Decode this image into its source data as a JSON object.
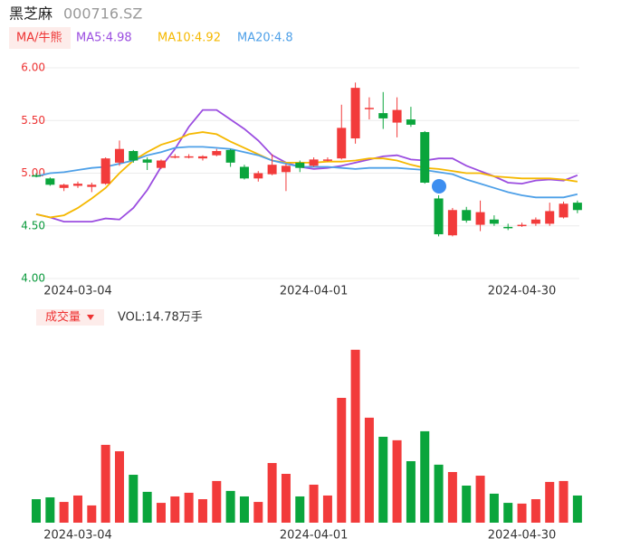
{
  "chart_data": [
    {
      "type": "candlestick",
      "title": "黑芝麻",
      "subtitle": "000716.SZ",
      "legend_title": "MA/牛熊",
      "categories": [
        null,
        null,
        null,
        "2024-03-04",
        null,
        null,
        null,
        null,
        null,
        null,
        null,
        null,
        null,
        null,
        null,
        null,
        null,
        null,
        null,
        null,
        "2024-04-01",
        null,
        null,
        null,
        null,
        null,
        null,
        null,
        null,
        null,
        null,
        null,
        null,
        null,
        null,
        "2024-04-30",
        null,
        null,
        null,
        null
      ],
      "open": [
        4.98,
        4.95,
        4.86,
        4.88,
        4.87,
        4.9,
        5.1,
        5.21,
        5.13,
        5.05,
        5.15,
        5.15,
        5.14,
        5.17,
        5.22,
        5.06,
        4.95,
        4.99,
        5.01,
        5.1,
        5.07,
        5.12,
        5.14,
        5.33,
        5.61,
        5.57,
        5.48,
        5.51,
        5.39,
        4.76,
        4.41,
        4.65,
        4.51,
        4.56,
        4.49,
        4.5,
        4.52,
        4.52,
        4.58,
        4.72
      ],
      "close": [
        4.97,
        4.89,
        4.89,
        4.9,
        4.89,
        5.14,
        5.23,
        5.12,
        5.1,
        5.12,
        5.16,
        5.16,
        5.16,
        5.21,
        5.1,
        4.95,
        5.0,
        5.08,
        5.07,
        5.05,
        5.13,
        5.13,
        5.43,
        5.81,
        5.62,
        5.52,
        5.6,
        5.46,
        4.91,
        4.42,
        4.65,
        4.55,
        4.63,
        4.52,
        4.48,
        4.51,
        4.56,
        4.64,
        4.71,
        4.65
      ],
      "high": [
        5.0,
        4.96,
        4.9,
        4.92,
        4.91,
        5.15,
        5.31,
        5.22,
        5.15,
        5.13,
        5.18,
        5.18,
        5.17,
        5.23,
        5.23,
        5.08,
        5.02,
        5.18,
        5.09,
        5.12,
        5.15,
        5.15,
        5.65,
        5.86,
        5.72,
        5.77,
        5.72,
        5.63,
        5.4,
        4.79,
        4.67,
        4.68,
        4.74,
        4.6,
        4.52,
        4.53,
        4.58,
        4.72,
        4.73,
        4.74
      ],
      "low": [
        4.96,
        4.88,
        4.83,
        4.86,
        4.82,
        4.89,
        5.07,
        5.1,
        5.03,
        5.04,
        5.14,
        5.14,
        5.12,
        5.16,
        5.06,
        4.94,
        4.92,
        4.98,
        4.83,
        5.01,
        5.06,
        5.11,
        5.13,
        5.28,
        5.51,
        5.42,
        5.34,
        5.44,
        4.9,
        4.4,
        4.4,
        4.53,
        4.45,
        4.5,
        4.46,
        4.49,
        4.5,
        4.5,
        4.57,
        4.62
      ],
      "up_color": "#f23b3b",
      "down_color": "#0aa53c",
      "series": [
        {
          "name": "MA5:4.98",
          "color": "#9b4de0",
          "values": [
            4.61,
            4.58,
            4.54,
            4.54,
            4.54,
            4.57,
            4.56,
            4.67,
            4.84,
            5.06,
            5.23,
            5.44,
            5.6,
            5.6,
            5.51,
            5.42,
            5.31,
            5.17,
            5.1,
            5.06,
            5.04,
            5.05,
            5.07,
            5.1,
            5.13,
            5.16,
            5.17,
            5.13,
            5.12,
            5.14,
            5.14,
            5.07,
            5.02,
            4.97,
            4.91,
            4.9,
            4.93,
            4.94,
            4.93,
            4.98
          ]
        },
        {
          "name": "MA10:4.92",
          "color": "#f5b800",
          "values": [
            4.61,
            4.58,
            4.6,
            4.67,
            4.76,
            4.86,
            5.0,
            5.12,
            5.2,
            5.27,
            5.31,
            5.37,
            5.39,
            5.37,
            5.3,
            5.24,
            5.18,
            5.12,
            5.1,
            5.1,
            5.1,
            5.11,
            5.11,
            5.12,
            5.14,
            5.14,
            5.12,
            5.08,
            5.05,
            5.04,
            5.02,
            5.0,
            5.0,
            4.97,
            4.96,
            4.95,
            4.95,
            4.95,
            4.94,
            4.92
          ]
        },
        {
          "name": "MA20:4.8",
          "color": "#4ea0e8",
          "values": [
            4.97,
            5.0,
            5.01,
            5.03,
            5.05,
            5.06,
            5.09,
            5.12,
            5.17,
            5.2,
            5.24,
            5.25,
            5.25,
            5.24,
            5.23,
            5.2,
            5.17,
            5.12,
            5.09,
            5.06,
            5.06,
            5.06,
            5.05,
            5.04,
            5.05,
            5.05,
            5.05,
            5.04,
            5.03,
            5.01,
            4.99,
            4.94,
            4.9,
            4.86,
            4.82,
            4.79,
            4.77,
            4.77,
            4.77,
            4.8
          ]
        }
      ],
      "ylim": [
        4,
        6
      ],
      "yticks": [
        {
          "value": 6,
          "label": "6.00"
        },
        {
          "value": 5.5,
          "label": "5.50"
        },
        {
          "value": 5,
          "label": "5.00"
        },
        {
          "value": 4.5,
          "label": "4.50"
        },
        {
          "value": 4,
          "label": "4.00"
        }
      ],
      "ytick_colors": [
        "#e33",
        "#e33",
        "#e33",
        "#0a9a3c",
        "#0a9a3c"
      ],
      "grid": true
    },
    {
      "type": "bar",
      "title": "成交量",
      "subtitle": "VOL:14.78万手",
      "categories": [
        null,
        null,
        null,
        "2024-03-04",
        null,
        null,
        null,
        null,
        null,
        null,
        null,
        null,
        null,
        null,
        null,
        null,
        null,
        null,
        null,
        null,
        "2024-04-01",
        null,
        null,
        null,
        null,
        null,
        null,
        null,
        null,
        null,
        null,
        null,
        null,
        null,
        null,
        "2024-04-30",
        null,
        null,
        null,
        null
      ],
      "values": [
        12.8,
        13.8,
        11.3,
        14.8,
        9.4,
        42.4,
        38.9,
        26.1,
        16.8,
        10.8,
        14.3,
        16.3,
        12.8,
        22.7,
        17.3,
        14.3,
        11.3,
        32.5,
        26.6,
        14.3,
        20.7,
        14.8,
        68.0,
        94.2,
        57.2,
        46.8,
        44.9,
        33.5,
        49.8,
        31.6,
        27.6,
        20.2,
        25.6,
        15.8,
        10.8,
        10.4,
        12.8,
        22.2,
        22.7,
        14.8
      ],
      "ylim": [
        0,
        100
      ]
    }
  ]
}
